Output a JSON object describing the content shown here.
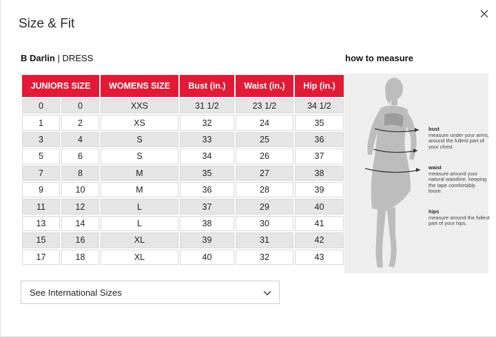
{
  "modal": {
    "title": "Size & Fit",
    "close_icon": "close-icon"
  },
  "product": {
    "brand": "B Darlin",
    "separator": " | ",
    "type": "DRESS"
  },
  "how_to_measure": {
    "heading": "how to measure",
    "tips": [
      {
        "label": "bust",
        "text": "measure under your arms, around the fullest part of your chest."
      },
      {
        "label": "waist",
        "text": "measure around your natural waistline, keeping the tape comfortably loose."
      },
      {
        "label": "hips",
        "text": "measure around the fullest part of your hips."
      }
    ]
  },
  "size_table": {
    "headers": {
      "juniors": "JUNIORS SIZE",
      "womens": "WOMENS SIZE",
      "bust": "Bust (in.)",
      "waist": "Waist (in.)",
      "hip": "Hip (in.)"
    },
    "rows": [
      [
        "0",
        "0",
        "XXS",
        "31 1/2",
        "23 1/2",
        "34 1/2"
      ],
      [
        "1",
        "2",
        "XS",
        "32",
        "24",
        "35"
      ],
      [
        "3",
        "4",
        "S",
        "33",
        "25",
        "36"
      ],
      [
        "5",
        "6",
        "S",
        "34",
        "26",
        "37"
      ],
      [
        "7",
        "8",
        "M",
        "35",
        "27",
        "38"
      ],
      [
        "9",
        "10",
        "M",
        "36",
        "28",
        "39"
      ],
      [
        "11",
        "12",
        "L",
        "37",
        "29",
        "40"
      ],
      [
        "13",
        "14",
        "L",
        "38",
        "30",
        "41"
      ],
      [
        "15",
        "16",
        "XL",
        "39",
        "31",
        "42"
      ],
      [
        "17",
        "18",
        "XL",
        "40",
        "32",
        "43"
      ]
    ]
  },
  "international": {
    "label": "See International Sizes",
    "icon": "chevron-down-icon"
  },
  "colors": {
    "header_red": "#e21a36",
    "row_shade": "#e6e6e6",
    "figure_bg": "#efefef"
  }
}
